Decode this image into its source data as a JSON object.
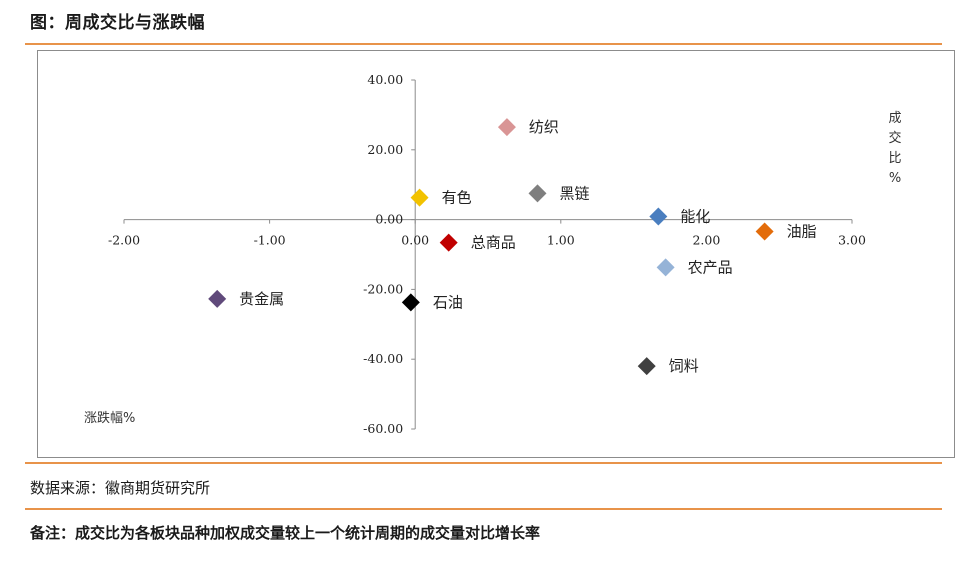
{
  "header": {
    "title": "图：周成交比与涨跌幅"
  },
  "footer": {
    "source": "数据来源：徽商期货研究所",
    "note": "备注：成交比为各板块品种加权成交量较上一个统计周期的成交量对比增长率"
  },
  "chart_data": {
    "type": "scatter",
    "title": "",
    "xlabel": "涨跌幅%",
    "ylabel": "成交比%",
    "xlim": [
      -2,
      3
    ],
    "ylim": [
      -60,
      40
    ],
    "x_ticks": [
      "-2.00",
      "-1.00",
      "0.00",
      "1.00",
      "2.00",
      "3.00"
    ],
    "y_ticks": [
      "40.00",
      "20.00",
      "0.00",
      "-20.00",
      "-40.00",
      "-60.00"
    ],
    "grid": false,
    "points": [
      {
        "name": "纺织",
        "x": 0.63,
        "y": 26.5,
        "color": "#d99595"
      },
      {
        "name": "有色",
        "x": 0.03,
        "y": 6.3,
        "color": "#f2c200"
      },
      {
        "name": "黑链",
        "x": 0.84,
        "y": 7.5,
        "color": "#7f7f7f"
      },
      {
        "name": "能化",
        "x": 1.67,
        "y": 0.9,
        "color": "#4a7ebf"
      },
      {
        "name": "油脂",
        "x": 2.4,
        "y": -3.4,
        "color": "#e36c0a"
      },
      {
        "name": "总商品",
        "x": 0.23,
        "y": -6.6,
        "color": "#c00000"
      },
      {
        "name": "农产品",
        "x": 1.72,
        "y": -13.7,
        "color": "#95b3d7"
      },
      {
        "name": "贵金属",
        "x": -1.36,
        "y": -22.7,
        "color": "#604a7b"
      },
      {
        "name": "石油",
        "x": -0.03,
        "y": -23.7,
        "color": "#000000"
      },
      {
        "name": "饲料",
        "x": 1.59,
        "y": -42.0,
        "color": "#404040"
      }
    ]
  }
}
